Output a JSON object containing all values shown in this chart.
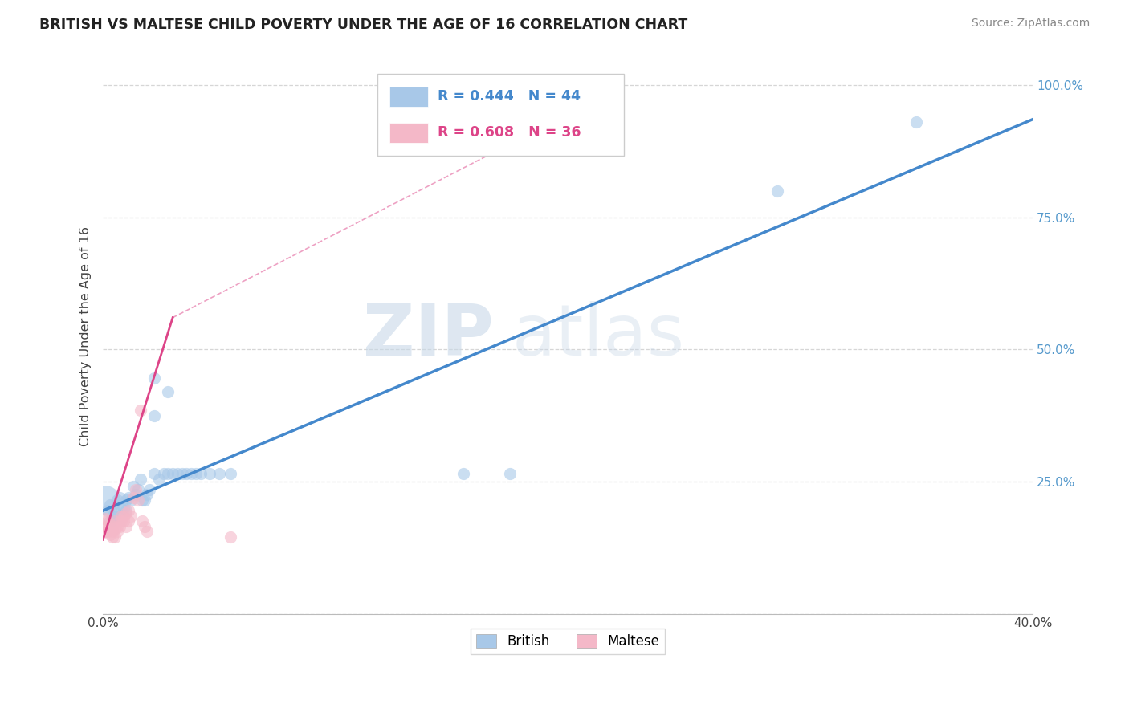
{
  "title": "BRITISH VS MALTESE CHILD POVERTY UNDER THE AGE OF 16 CORRELATION CHART",
  "source": "Source: ZipAtlas.com",
  "ylabel": "Child Poverty Under the Age of 16",
  "xlim": [
    0.0,
    0.4
  ],
  "ylim": [
    0.0,
    1.05
  ],
  "xticks": [
    0.0,
    0.05,
    0.1,
    0.15,
    0.2,
    0.25,
    0.3,
    0.35,
    0.4
  ],
  "xticklabels": [
    "0.0%",
    "",
    "",
    "",
    "",
    "",
    "",
    "",
    "40.0%"
  ],
  "ytick_positions": [
    0.0,
    0.25,
    0.5,
    0.75,
    1.0
  ],
  "yticklabels": [
    "",
    "25.0%",
    "50.0%",
    "75.0%",
    "100.0%"
  ],
  "british_R": 0.444,
  "british_N": 44,
  "maltese_R": 0.608,
  "maltese_N": 36,
  "british_color": "#a8c8e8",
  "maltese_color": "#f4b8c8",
  "british_line_color": "#4488cc",
  "maltese_line_color": "#dd4488",
  "watermark_zip": "ZIP",
  "watermark_atlas": "atlas",
  "british_line": [
    0.0,
    0.195,
    0.4,
    0.935
  ],
  "maltese_line_solid": [
    0.0,
    0.14,
    0.03,
    0.56
  ],
  "maltese_line_dashed": [
    0.03,
    0.56,
    0.22,
    0.99
  ],
  "british_points": [
    [
      0.001,
      0.215,
      700
    ],
    [
      0.002,
      0.195,
      120
    ],
    [
      0.003,
      0.175,
      120
    ],
    [
      0.003,
      0.205,
      120
    ],
    [
      0.004,
      0.185,
      120
    ],
    [
      0.005,
      0.195,
      120
    ],
    [
      0.005,
      0.185,
      120
    ],
    [
      0.006,
      0.215,
      120
    ],
    [
      0.007,
      0.22,
      120
    ],
    [
      0.008,
      0.2,
      120
    ],
    [
      0.009,
      0.2,
      120
    ],
    [
      0.01,
      0.215,
      120
    ],
    [
      0.01,
      0.195,
      120
    ],
    [
      0.011,
      0.22,
      120
    ],
    [
      0.012,
      0.215,
      120
    ],
    [
      0.013,
      0.24,
      120
    ],
    [
      0.014,
      0.225,
      120
    ],
    [
      0.015,
      0.235,
      120
    ],
    [
      0.016,
      0.255,
      120
    ],
    [
      0.017,
      0.215,
      120
    ],
    [
      0.018,
      0.215,
      120
    ],
    [
      0.019,
      0.225,
      120
    ],
    [
      0.02,
      0.235,
      120
    ],
    [
      0.022,
      0.265,
      120
    ],
    [
      0.024,
      0.255,
      120
    ],
    [
      0.026,
      0.265,
      120
    ],
    [
      0.028,
      0.265,
      120
    ],
    [
      0.03,
      0.265,
      120
    ],
    [
      0.032,
      0.265,
      120
    ],
    [
      0.034,
      0.265,
      120
    ],
    [
      0.036,
      0.265,
      120
    ],
    [
      0.038,
      0.265,
      120
    ],
    [
      0.04,
      0.265,
      120
    ],
    [
      0.042,
      0.265,
      120
    ],
    [
      0.046,
      0.265,
      120
    ],
    [
      0.05,
      0.265,
      120
    ],
    [
      0.055,
      0.265,
      120
    ],
    [
      0.022,
      0.445,
      120
    ],
    [
      0.028,
      0.42,
      120
    ],
    [
      0.022,
      0.375,
      120
    ],
    [
      0.155,
      0.265,
      120
    ],
    [
      0.175,
      0.265,
      120
    ],
    [
      0.29,
      0.8,
      120
    ],
    [
      0.35,
      0.93,
      120
    ]
  ],
  "maltese_points": [
    [
      0.001,
      0.18,
      120
    ],
    [
      0.001,
      0.165,
      120
    ],
    [
      0.001,
      0.155,
      120
    ],
    [
      0.002,
      0.175,
      120
    ],
    [
      0.002,
      0.165,
      120
    ],
    [
      0.002,
      0.155,
      120
    ],
    [
      0.003,
      0.17,
      120
    ],
    [
      0.003,
      0.16,
      120
    ],
    [
      0.003,
      0.15,
      120
    ],
    [
      0.004,
      0.165,
      120
    ],
    [
      0.004,
      0.155,
      120
    ],
    [
      0.004,
      0.145,
      120
    ],
    [
      0.005,
      0.175,
      120
    ],
    [
      0.005,
      0.16,
      120
    ],
    [
      0.005,
      0.145,
      120
    ],
    [
      0.006,
      0.165,
      120
    ],
    [
      0.006,
      0.155,
      120
    ],
    [
      0.007,
      0.175,
      120
    ],
    [
      0.007,
      0.165,
      120
    ],
    [
      0.008,
      0.185,
      120
    ],
    [
      0.008,
      0.175,
      120
    ],
    [
      0.009,
      0.185,
      120
    ],
    [
      0.009,
      0.175,
      120
    ],
    [
      0.01,
      0.19,
      120
    ],
    [
      0.01,
      0.165,
      120
    ],
    [
      0.011,
      0.195,
      120
    ],
    [
      0.011,
      0.175,
      120
    ],
    [
      0.012,
      0.185,
      120
    ],
    [
      0.013,
      0.22,
      120
    ],
    [
      0.014,
      0.235,
      120
    ],
    [
      0.015,
      0.215,
      120
    ],
    [
      0.016,
      0.385,
      120
    ],
    [
      0.017,
      0.175,
      120
    ],
    [
      0.018,
      0.165,
      120
    ],
    [
      0.019,
      0.155,
      120
    ],
    [
      0.055,
      0.145,
      120
    ]
  ]
}
